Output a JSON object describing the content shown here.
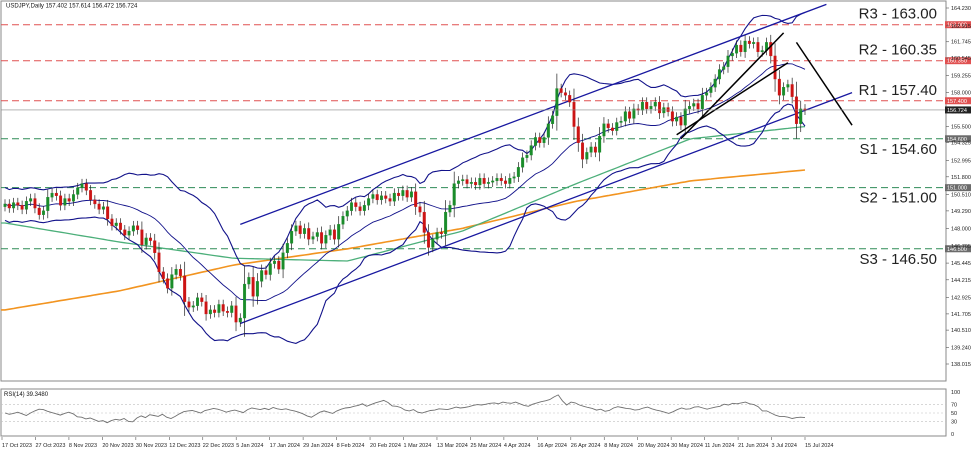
{
  "header": {
    "title": "USDJPY,Daily  157.402 157.614 156.472 156.724"
  },
  "rsi_header": "RSI(14) 39.3480",
  "colors": {
    "bull": "#1a8c2a",
    "bear": "#cc1414",
    "blue": "#1818a0",
    "navy": "#12128a",
    "ma_green": "#4caf7a",
    "ma_orange": "#f29420",
    "level": "#e05050",
    "support": "#2e8b57",
    "rsi": "#707070"
  },
  "levels": [
    {
      "id": "r3",
      "label": "R3 - 163.00",
      "price": 163.0,
      "axis_label": "163.000",
      "style": "resistance"
    },
    {
      "id": "r2",
      "label": "R2 - 160.35",
      "price": 160.35,
      "axis_label": "160.350",
      "style": "resistance"
    },
    {
      "id": "r1",
      "label": "R1 - 157.40",
      "price": 157.4,
      "axis_label": "157.400",
      "style": "resistance"
    },
    {
      "id": "s1",
      "label": "S1 - 154.60",
      "price": 154.6,
      "axis_label": "154.600",
      "style": "support"
    },
    {
      "id": "s2",
      "label": "S2 - 151.00",
      "price": 151.0,
      "axis_label": "151.000",
      "style": "support"
    },
    {
      "id": "s3",
      "label": "S3 - 146.50",
      "price": 146.5,
      "axis_label": "146.500",
      "style": "support"
    }
  ],
  "chart_data": {
    "type": "candlestick",
    "symbol": "USDJPY",
    "timeframe": "Daily",
    "last_price": 156.724,
    "y_ticks": [
      "164.230",
      "162.915",
      "161.745",
      "160.545",
      "159.255",
      "158.000",
      "156.615",
      "155.500",
      "154.325",
      "152.995",
      "151.800",
      "150.510",
      "149.290",
      "148.000",
      "146.705",
      "145.445",
      "144.215",
      "142.925",
      "141.705",
      "140.510",
      "139.240",
      "138.015"
    ],
    "ylim": [
      138.015,
      164.23
    ],
    "x_ticks": [
      "17 Oct 2023",
      "27 Oct 2023",
      "8 Nov 2023",
      "20 Nov 2023",
      "30 Nov 2023",
      "12 Dec 2023",
      "22 Dec 2023",
      "5 Jan 2024",
      "17 Jan 2024",
      "29 Jan 2024",
      "8 Feb 2024",
      "20 Feb 2024",
      "1 Mar 2024",
      "13 Mar 2024",
      "25 Mar 2024",
      "4 Apr 2024",
      "16 Apr 2024",
      "26 Apr 2024",
      "8 May 2024",
      "20 May 2024",
      "30 May 2024",
      "11 Jun 2024",
      "21 Jun 2024",
      "3 Jul 2024",
      "15 Jul 2024"
    ],
    "closes": [
      149.8,
      149.5,
      149.9,
      149.7,
      149.4,
      150.0,
      150.2,
      149.5,
      149.0,
      149.3,
      150.3,
      150.6,
      150.4,
      149.7,
      150.2,
      150.0,
      150.5,
      151.0,
      151.3,
      150.8,
      150.1,
      149.8,
      149.4,
      149.6,
      148.7,
      148.2,
      148.4,
      147.9,
      147.5,
      147.8,
      148.2,
      147.9,
      146.8,
      147.3,
      147.1,
      146.2,
      144.8,
      144.3,
      143.6,
      144.6,
      145.0,
      144.5,
      142.6,
      142.2,
      142.3,
      142.9,
      142.6,
      141.7,
      142.0,
      141.8,
      142.4,
      141.9,
      141.8,
      142.3,
      141.1,
      141.4,
      143.9,
      144.4,
      143.0,
      144.1,
      144.9,
      144.6,
      145.4,
      145.6,
      145.0,
      146.2,
      146.9,
      147.8,
      148.2,
      147.6,
      148.0,
      147.2,
      147.4,
      147.7,
      146.9,
      147.5,
      147.9,
      147.2,
      148.3,
      148.9,
      149.3,
      149.9,
      149.6,
      149.3,
      149.7,
      150.2,
      150.5,
      150.1,
      150.4,
      150.2,
      150.0,
      150.6,
      150.4,
      150.8,
      150.3,
      150.7,
      149.6,
      149.2,
      147.7,
      146.6,
      147.2,
      147.7,
      147.6,
      149.2,
      149.7,
      151.3,
      151.5,
      151.6,
      151.3,
      151.4,
      151.2,
      151.7,
      151.3,
      151.4,
      151.5,
      151.7,
      151.5,
      151.3,
      151.7,
      151.8,
      152.5,
      153.2,
      153.4,
      154.1,
      154.7,
      154.3,
      154.7,
      155.7,
      156.3,
      158.3,
      158.0,
      157.8,
      157.3,
      155.5,
      154.3,
      153.1,
      153.6,
      154.0,
      153.6,
      154.8,
      155.7,
      155.4,
      155.2,
      155.8,
      155.9,
      156.6,
      156.1,
      156.8,
      156.7,
      157.3,
      156.8,
      157.0,
      157.3,
      156.5,
      156.9,
      156.6,
      155.9,
      156.2,
      155.6,
      156.8,
      157.0,
      157.2,
      156.8,
      157.8,
      158.0,
      158.4,
      159.0,
      159.7,
      159.9,
      160.7,
      160.9,
      161.5,
      161.0,
      161.8,
      161.6,
      161.7,
      161.0,
      161.1,
      161.7,
      160.7,
      159.0,
      157.8,
      158.4,
      158.6,
      157.7,
      155.7,
      156.8,
      156.7
    ],
    "ma_green": [
      148.4,
      147.0,
      145.8,
      145.6,
      147.8,
      151.3,
      154.6,
      155.5
    ],
    "ma_orange": [
      142.0,
      143.4,
      145.3,
      146.5,
      148.0,
      150.0,
      151.5,
      152.3
    ]
  },
  "rsi_data": {
    "type": "line",
    "levels": [
      "100",
      "70",
      "50",
      "30",
      "0"
    ],
    "values": [
      50,
      47,
      49,
      52,
      48,
      44,
      50,
      55,
      59,
      58,
      54,
      51,
      48,
      45,
      49,
      52,
      48,
      41,
      40,
      36,
      38,
      34,
      30,
      32,
      27,
      32,
      35,
      33,
      37,
      30,
      29,
      38,
      43,
      39,
      46,
      44,
      42,
      47,
      40,
      37,
      42,
      48,
      53,
      55,
      56,
      53,
      50,
      56,
      58,
      61,
      59,
      56,
      52,
      55,
      57,
      54,
      51,
      58,
      62,
      60,
      58,
      61,
      58,
      63,
      60,
      58,
      60,
      57,
      55,
      52,
      48,
      43,
      40,
      46,
      52,
      55,
      52,
      49,
      55,
      59,
      62,
      63,
      66,
      68,
      72,
      66,
      70,
      74,
      77,
      80,
      75,
      67,
      66,
      63,
      57,
      55,
      58,
      52,
      50,
      53,
      56,
      57,
      60,
      59,
      58,
      61,
      64,
      62,
      63,
      65,
      68,
      70,
      69,
      71,
      73,
      74,
      72,
      76,
      74,
      73,
      76,
      72,
      68,
      66,
      71,
      74,
      77,
      79,
      82,
      88,
      93,
      79,
      69,
      76,
      74,
      69,
      66,
      63,
      61,
      57,
      59,
      54,
      56,
      62,
      65,
      63,
      61,
      60,
      57,
      58,
      62,
      64,
      60,
      57,
      55,
      52,
      49,
      53,
      58,
      62,
      59,
      60,
      64,
      65,
      62,
      59,
      62,
      64,
      66,
      71,
      69,
      73,
      72,
      74,
      76,
      72,
      70,
      65,
      55,
      55,
      50,
      45,
      42,
      42,
      40,
      37,
      39,
      40,
      39
    ]
  }
}
